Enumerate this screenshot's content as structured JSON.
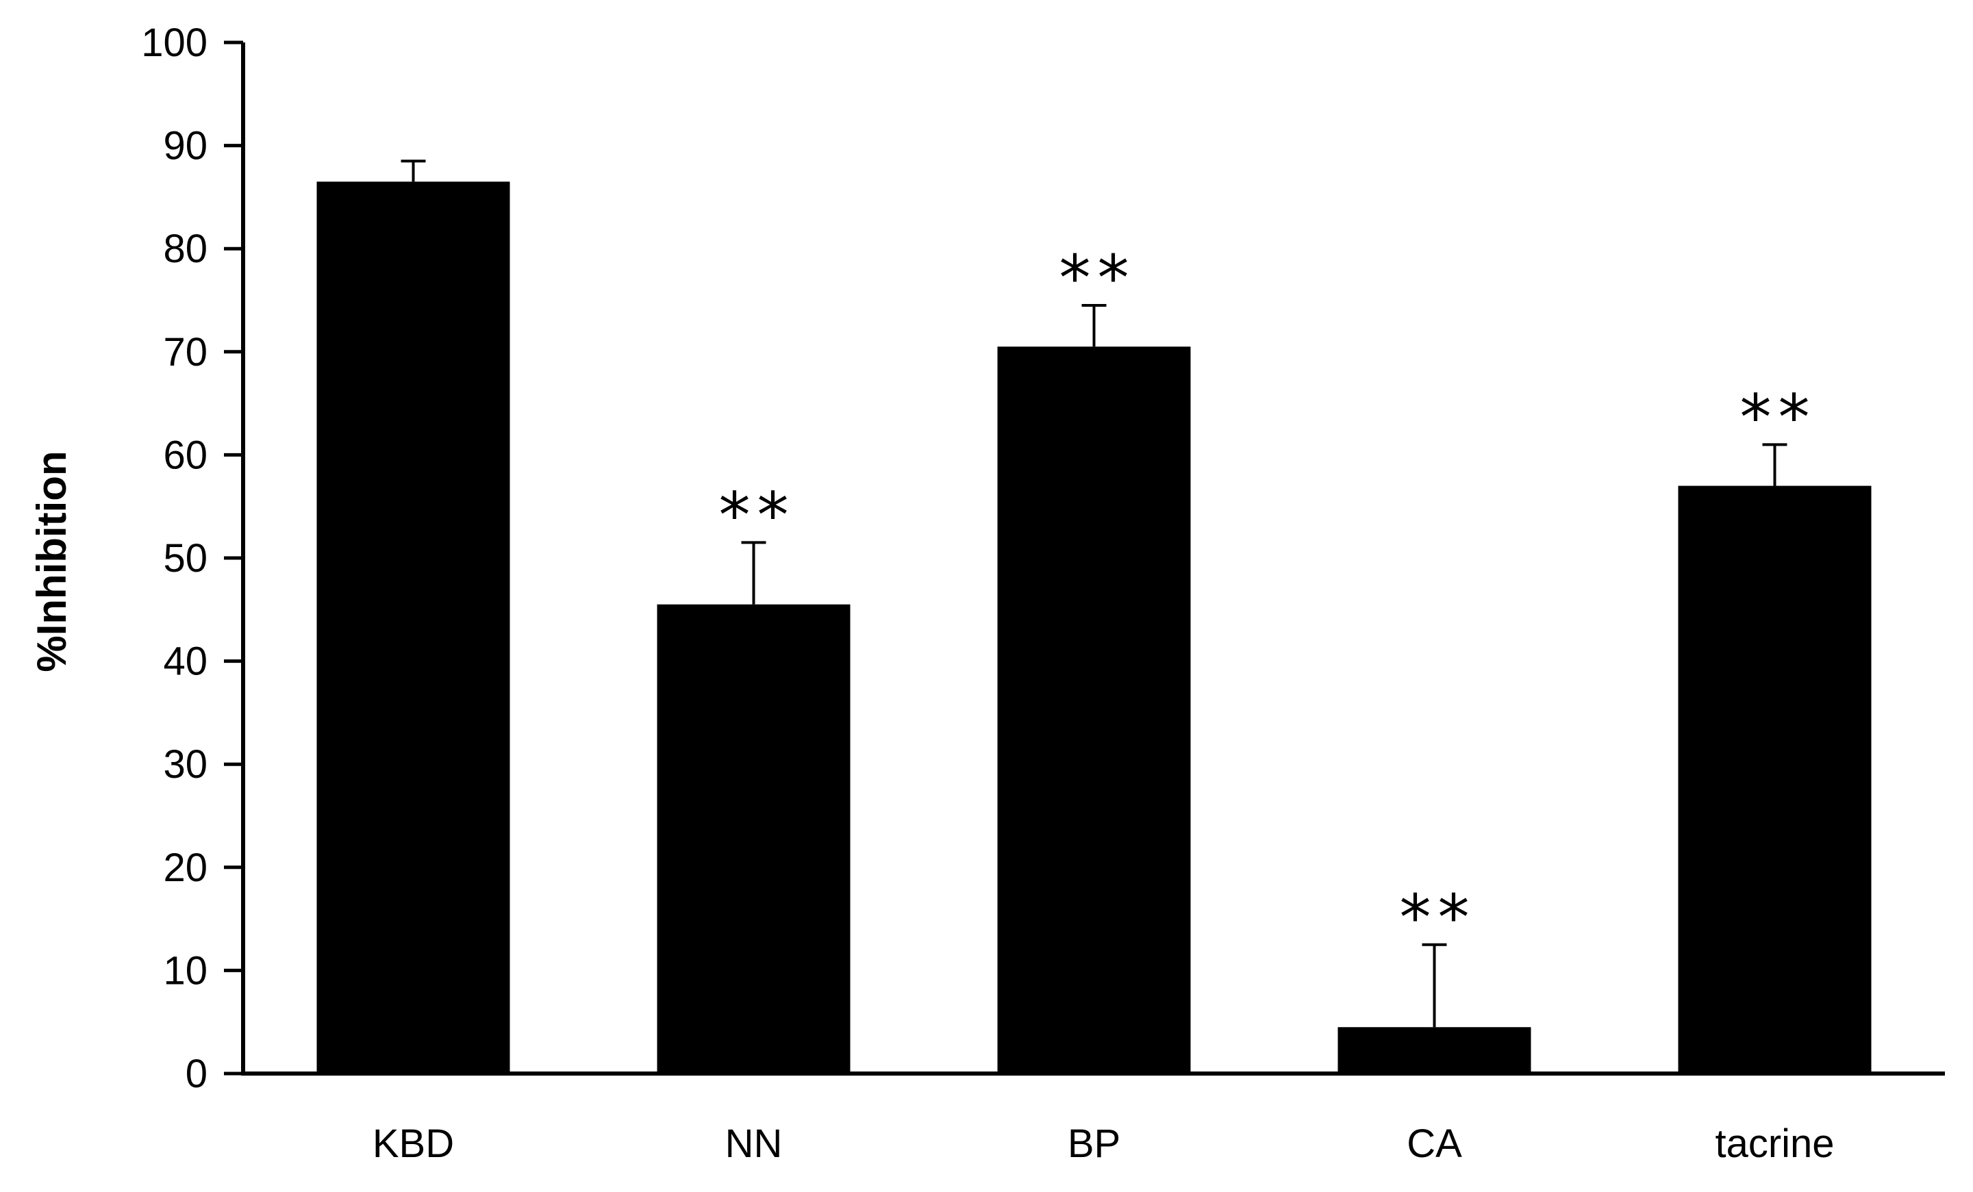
{
  "chart_data": {
    "type": "bar",
    "title": "",
    "xlabel": "",
    "ylabel": "%Inhibition",
    "ylim": [
      0,
      100
    ],
    "yticks": [
      0,
      10,
      20,
      30,
      40,
      50,
      60,
      70,
      80,
      90,
      100
    ],
    "categories": [
      "KBD",
      "NN",
      "BP",
      "CA",
      "tacrine"
    ],
    "values": [
      86.5,
      45.5,
      70.5,
      4.5,
      57.0
    ],
    "errors": [
      2.0,
      6.0,
      4.0,
      8.0,
      4.0
    ],
    "significance": [
      "",
      "**",
      "**",
      "**",
      "**"
    ],
    "bar_color": "#000000",
    "error_bar_color": "#000000",
    "grid": false,
    "legend": "none"
  }
}
